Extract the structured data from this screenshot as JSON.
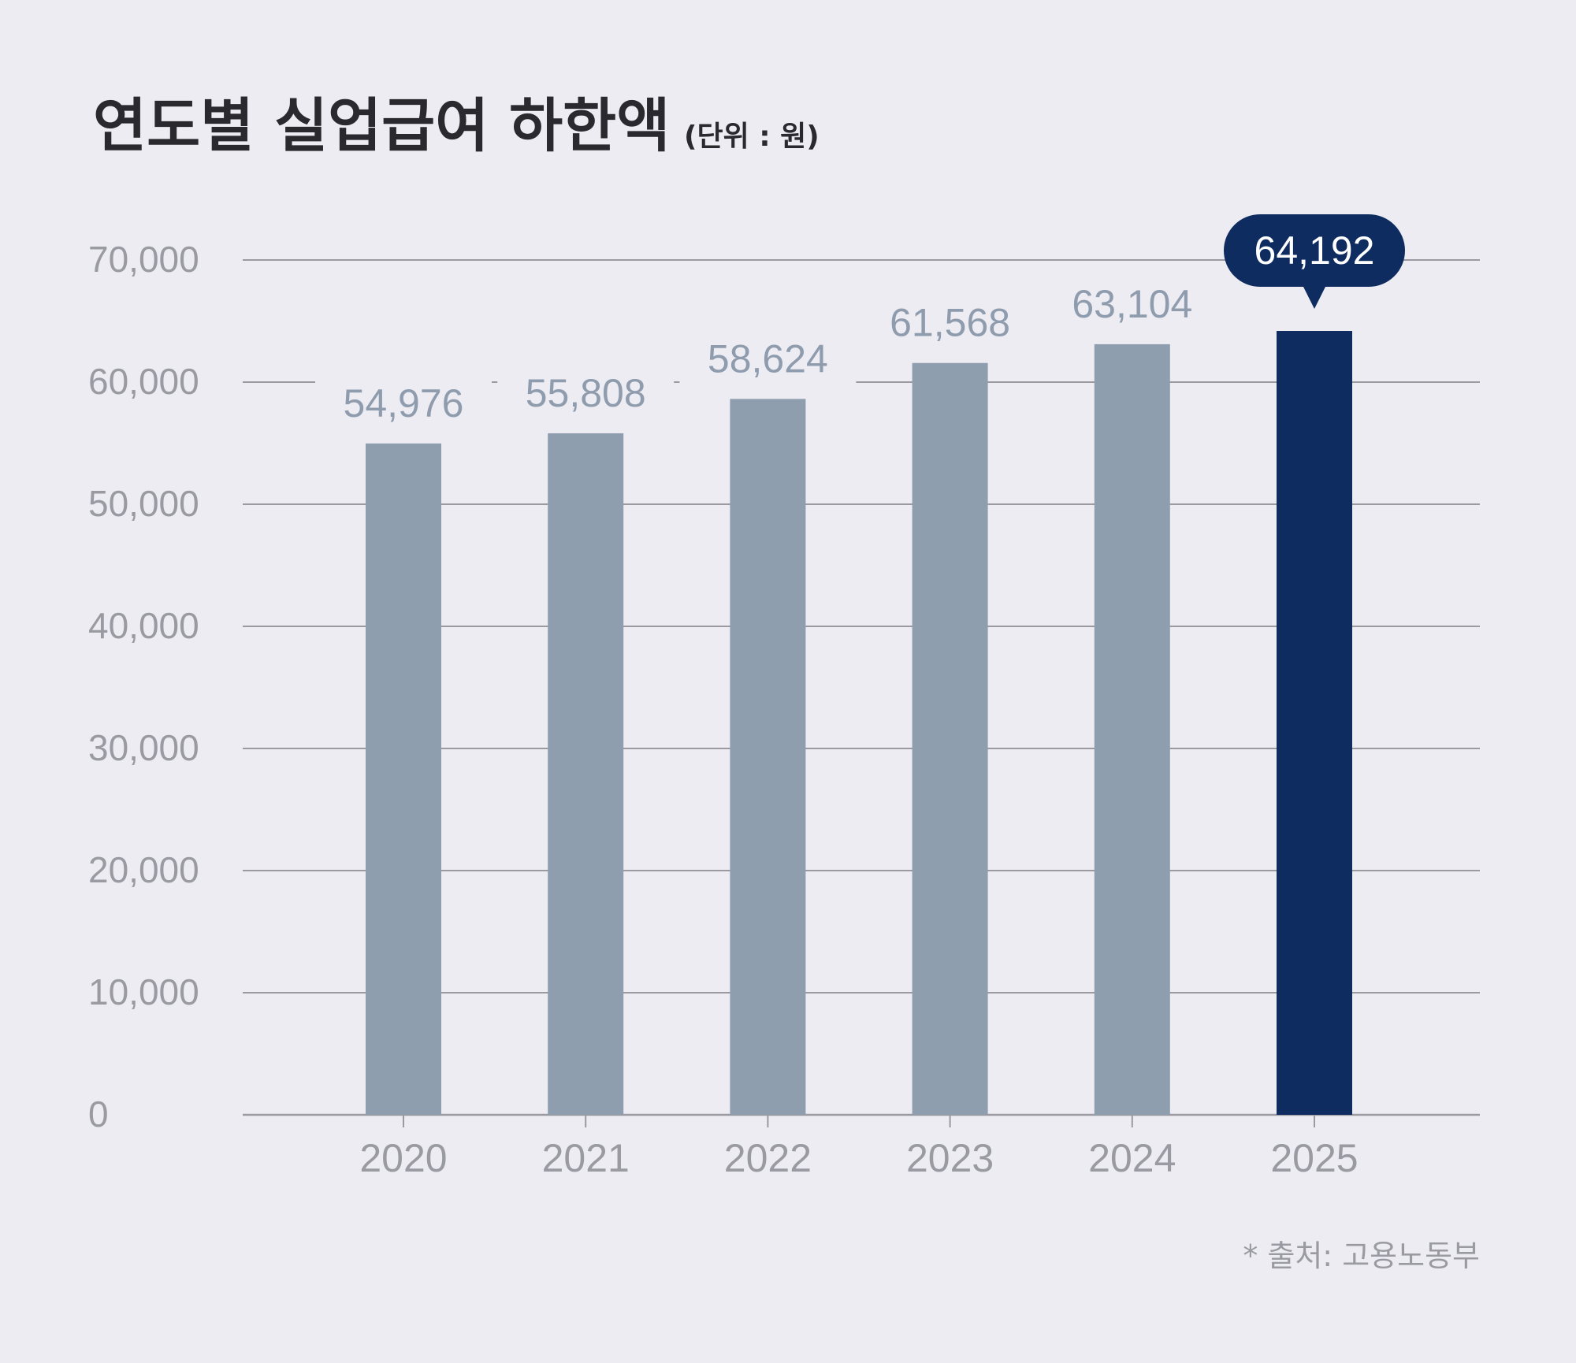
{
  "chart_data": {
    "type": "bar",
    "title": "연도별 실업급여 하한액",
    "unit_note": "(단위 : 원)",
    "categories": [
      "2020",
      "2021",
      "2022",
      "2023",
      "2024",
      "2025"
    ],
    "values": [
      54976,
      55808,
      58624,
      61568,
      63104,
      64192
    ],
    "value_labels": [
      "54,976",
      "55,808",
      "58,624",
      "61,568",
      "63,104",
      "64,192"
    ],
    "y_ticks": [
      "0",
      "10,000",
      "20,000",
      "30,000",
      "40,000",
      "50,000",
      "60,000",
      "70,000"
    ],
    "ylim": [
      0,
      70000
    ],
    "grid": true,
    "highlight_index": 5,
    "source": "* 출처: 고용노동부"
  },
  "colors": {
    "background": "#edecf2",
    "bar": "#8e9eae",
    "bar_highlight": "#0e2c60",
    "grid": "#9a9aa0",
    "value_label": "#8e9cae",
    "axis_text": "#9a9aa2",
    "title": "#2a2a2e"
  }
}
